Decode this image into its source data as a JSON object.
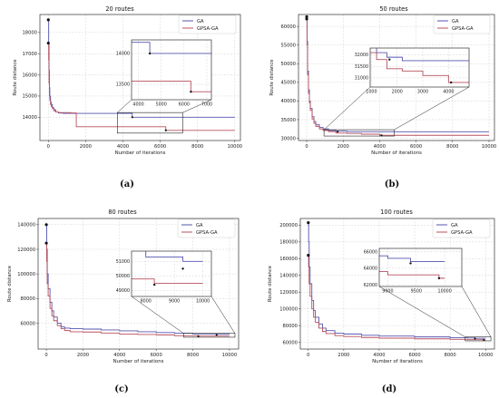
{
  "colors": {
    "ga": "#5555b0",
    "gpsa": "#b8505e",
    "grid": "#d3d3d3",
    "axis": "#333333",
    "text": "#222222"
  },
  "chart_data": [
    {
      "type": "line",
      "title": "20 routes",
      "caption": "(a)",
      "xlabel": "Number of iterations",
      "ylabel": "Route distance",
      "xlim": [
        -450,
        10300
      ],
      "ylim": [
        12900,
        18850
      ],
      "xticks": [
        0,
        2000,
        4000,
        6000,
        8000,
        10000
      ],
      "yticks": [
        14000,
        15000,
        16000,
        17000,
        18000
      ],
      "legend": "top-right",
      "grid": true,
      "series": [
        {
          "name": "GA",
          "color": "#5555b0",
          "x": [
            0,
            20,
            40,
            60,
            80,
            120,
            160,
            220,
            300,
            400,
            550,
            800,
            3800,
            4500,
            10000
          ],
          "y": [
            18600,
            17400,
            16200,
            15400,
            15000,
            14700,
            14600,
            14450,
            14350,
            14250,
            14200,
            14180,
            14180,
            14000,
            14000
          ],
          "marker": {
            "x": 4500,
            "y": 14000
          }
        },
        {
          "name": "GPSA-GA",
          "color": "#b8505e",
          "x": [
            0,
            20,
            40,
            60,
            80,
            120,
            160,
            220,
            300,
            400,
            550,
            1200,
            1500,
            6300,
            10000
          ],
          "y": [
            17500,
            16700,
            15600,
            15000,
            14800,
            14600,
            14500,
            14400,
            14300,
            14250,
            14220,
            14200,
            13550,
            13380,
            13380
          ],
          "marker": {
            "x": 6300,
            "y": 13380
          }
        }
      ],
      "inset": {
        "xlim": [
          3700,
          7200
        ],
        "ylim": [
          13250,
          14220
        ],
        "xticks": [
          4000,
          5000,
          6000,
          7000
        ],
        "yticks": [
          13500,
          14000
        ]
      }
    },
    {
      "type": "line",
      "title": "50 routes",
      "caption": "(b)",
      "xlabel": "Number of iterations",
      "ylabel": "Route distance",
      "xlim": [
        -450,
        10300
      ],
      "ylim": [
        29400,
        63200
      ],
      "xticks": [
        0,
        2000,
        4000,
        6000,
        8000,
        10000
      ],
      "yticks": [
        30000,
        35000,
        40000,
        45000,
        50000,
        55000,
        60000
      ],
      "legend": "top-right",
      "grid": true,
      "series": [
        {
          "name": "GA",
          "color": "#5555b0",
          "x": [
            0,
            20,
            50,
            100,
            150,
            200,
            300,
            400,
            500,
            700,
            900,
            1200,
            1600,
            2200,
            10000
          ],
          "y": [
            62600,
            56000,
            48000,
            43000,
            40000,
            38000,
            35800,
            34500,
            33600,
            32900,
            32500,
            32100,
            31900,
            31750,
            31750
          ],
          "marker": {
            "x": 1700,
            "y": 31800
          }
        },
        {
          "name": "GPSA-GA",
          "color": "#b8505e",
          "x": [
            0,
            20,
            50,
            100,
            150,
            200,
            300,
            400,
            500,
            700,
            900,
            1200,
            1600,
            2200,
            3000,
            4000,
            10000
          ],
          "y": [
            62000,
            55000,
            47000,
            42000,
            39500,
            37500,
            35200,
            34000,
            33200,
            32500,
            32100,
            31800,
            31400,
            31300,
            31100,
            30800,
            30800
          ],
          "marker": {
            "x": 4100,
            "y": 30800
          }
        }
      ],
      "inset": {
        "xlim": [
          950,
          4800
        ],
        "ylim": [
          30600,
          32300
        ],
        "xticks": [
          1000,
          2000,
          3000,
          4000
        ],
        "yticks": [
          31000,
          31500,
          32000
        ]
      }
    },
    {
      "type": "line",
      "title": "80 routes",
      "caption": "(c)",
      "xlabel": "Number of iterations",
      "ylabel": "Route distance",
      "xlim": [
        -450,
        10500
      ],
      "ylim": [
        39000,
        145000
      ],
      "xticks": [
        0,
        2000,
        4000,
        6000,
        8000,
        10000
      ],
      "yticks": [
        60000,
        80000,
        100000,
        120000,
        140000
      ],
      "legend": "top-right",
      "grid": true,
      "series": [
        {
          "name": "GA",
          "color": "#5555b0",
          "x": [
            0,
            20,
            50,
            100,
            200,
            300,
            400,
            600,
            800,
            1000,
            1300,
            2000,
            3000,
            4000,
            5000,
            6000,
            7000,
            8000,
            9300,
            10000
          ],
          "y": [
            140000,
            120000,
            100000,
            88000,
            77000,
            70000,
            65000,
            60000,
            57000,
            56000,
            55500,
            55200,
            54500,
            53800,
            53000,
            52400,
            51800,
            51300,
            51000,
            51000
          ],
          "marker": {
            "x": 9300,
            "y": 50500
          }
        },
        {
          "name": "GPSA-GA",
          "color": "#b8505e",
          "x": [
            0,
            20,
            50,
            100,
            200,
            300,
            400,
            600,
            800,
            1000,
            1300,
            2000,
            3000,
            4000,
            5000,
            6000,
            7000,
            8300,
            10000
          ],
          "y": [
            125000,
            110000,
            92000,
            82000,
            72000,
            66000,
            62000,
            58000,
            55500,
            54000,
            53000,
            52800,
            52000,
            51200,
            50800,
            50500,
            49800,
            49500,
            49500
          ],
          "marker": {
            "x": 8300,
            "y": 49400
          }
        }
      ],
      "inset": {
        "xlim": [
          7500,
          10300
        ],
        "ylim": [
          48600,
          51700
        ],
        "xticks": [
          8000,
          9000,
          10000
        ],
        "yticks": [
          49000,
          50000,
          51000
        ]
      }
    },
    {
      "type": "line",
      "title": "100 routes",
      "caption": "(d)",
      "xlabel": "Number of iterations",
      "ylabel": "Route distance",
      "xlim": [
        -450,
        10500
      ],
      "ylim": [
        52000,
        208000
      ],
      "xticks": [
        0,
        2000,
        4000,
        6000,
        8000,
        10000
      ],
      "yticks": [
        60000,
        80000,
        100000,
        120000,
        140000,
        160000,
        180000,
        200000
      ],
      "legend": "top-right",
      "grid": true,
      "series": [
        {
          "name": "GA",
          "color": "#5555b0",
          "x": [
            0,
            20,
            50,
            100,
            200,
            300,
            400,
            600,
            800,
            1000,
            1500,
            2000,
            3000,
            4000,
            6000,
            8000,
            9000,
            9400,
            10000
          ],
          "y": [
            203000,
            180000,
            150000,
            130000,
            110000,
            98000,
            90000,
            82000,
            77000,
            74000,
            71000,
            70000,
            68500,
            67500,
            66500,
            65500,
            65200,
            64800,
            64800
          ],
          "marker": {
            "x": 9400,
            "y": 64600
          }
        },
        {
          "name": "GPSA-GA",
          "color": "#b8505e",
          "x": [
            0,
            20,
            50,
            100,
            200,
            300,
            400,
            600,
            800,
            1000,
            1500,
            2000,
            3000,
            4000,
            6000,
            8000,
            9000,
            9900,
            10000
          ],
          "y": [
            164000,
            150000,
            130000,
            115000,
            100000,
            90000,
            84000,
            77000,
            73000,
            70500,
            68000,
            67000,
            65800,
            65000,
            64200,
            63600,
            63200,
            62800,
            62800
          ],
          "marker": {
            "x": 9900,
            "y": 62800
          }
        }
      ],
      "inset": {
        "xlim": [
          8850,
          10300
        ],
        "ylim": [
          61800,
          66400
        ],
        "xticks": [
          9000,
          9500,
          10000
        ],
        "yticks": [
          62000,
          64000,
          66000
        ]
      }
    }
  ]
}
